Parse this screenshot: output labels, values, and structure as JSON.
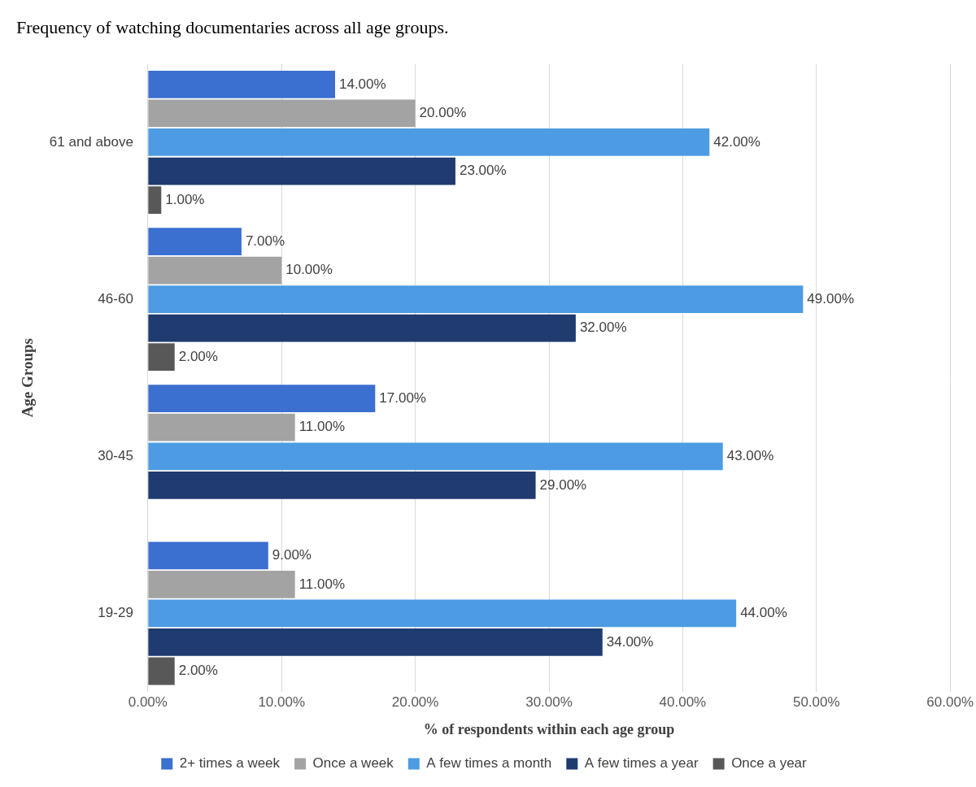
{
  "chart_data": {
    "type": "bar",
    "orientation": "horizontal",
    "title": "Frequency of watching documentaries across all age groups.",
    "x_label": "% of respondents within each age group",
    "y_label": "Age Groups",
    "categories": [
      "19-29",
      "30-45",
      "46-60",
      "61 and above"
    ],
    "series": [
      {
        "name": "2+ times a week",
        "color": "#3b6fd0",
        "values": [
          9,
          17,
          7,
          14
        ],
        "value_labels": [
          "9.00%",
          "17.00%",
          "7.00%",
          "14.00%"
        ]
      },
      {
        "name": "Once a week",
        "color": "#a3a3a3",
        "values": [
          11,
          11,
          10,
          20
        ],
        "value_labels": [
          "11.00%",
          "11.00%",
          "10.00%",
          "20.00%"
        ]
      },
      {
        "name": "A few times a month",
        "color": "#4d9be2",
        "values": [
          44,
          43,
          49,
          42
        ],
        "value_labels": [
          "44.00%",
          "43.00%",
          "49.00%",
          "42.00%"
        ]
      },
      {
        "name": "A few times a year",
        "color": "#1f3b70",
        "values": [
          34,
          29,
          32,
          23
        ],
        "value_labels": [
          "34.00%",
          "29.00%",
          "32.00%",
          "23.00%"
        ]
      },
      {
        "name": "Once a year",
        "color": "#585858",
        "values": [
          2,
          null,
          2,
          1
        ],
        "value_labels": [
          "2.00%",
          null,
          "2.00%",
          "1.00%"
        ]
      }
    ],
    "xlim": [
      0,
      60
    ],
    "xticks": [
      {
        "value": 0,
        "label": "0.00%"
      },
      {
        "value": 10,
        "label": "10.00%"
      },
      {
        "value": 20,
        "label": "20.00%"
      },
      {
        "value": 30,
        "label": "30.00%"
      },
      {
        "value": 40,
        "label": "40.00%"
      },
      {
        "value": 50,
        "label": "50.00%"
      },
      {
        "value": 60,
        "label": "60.00%"
      }
    ],
    "grid": true,
    "legend": "bottom",
    "data_labels": true
  }
}
